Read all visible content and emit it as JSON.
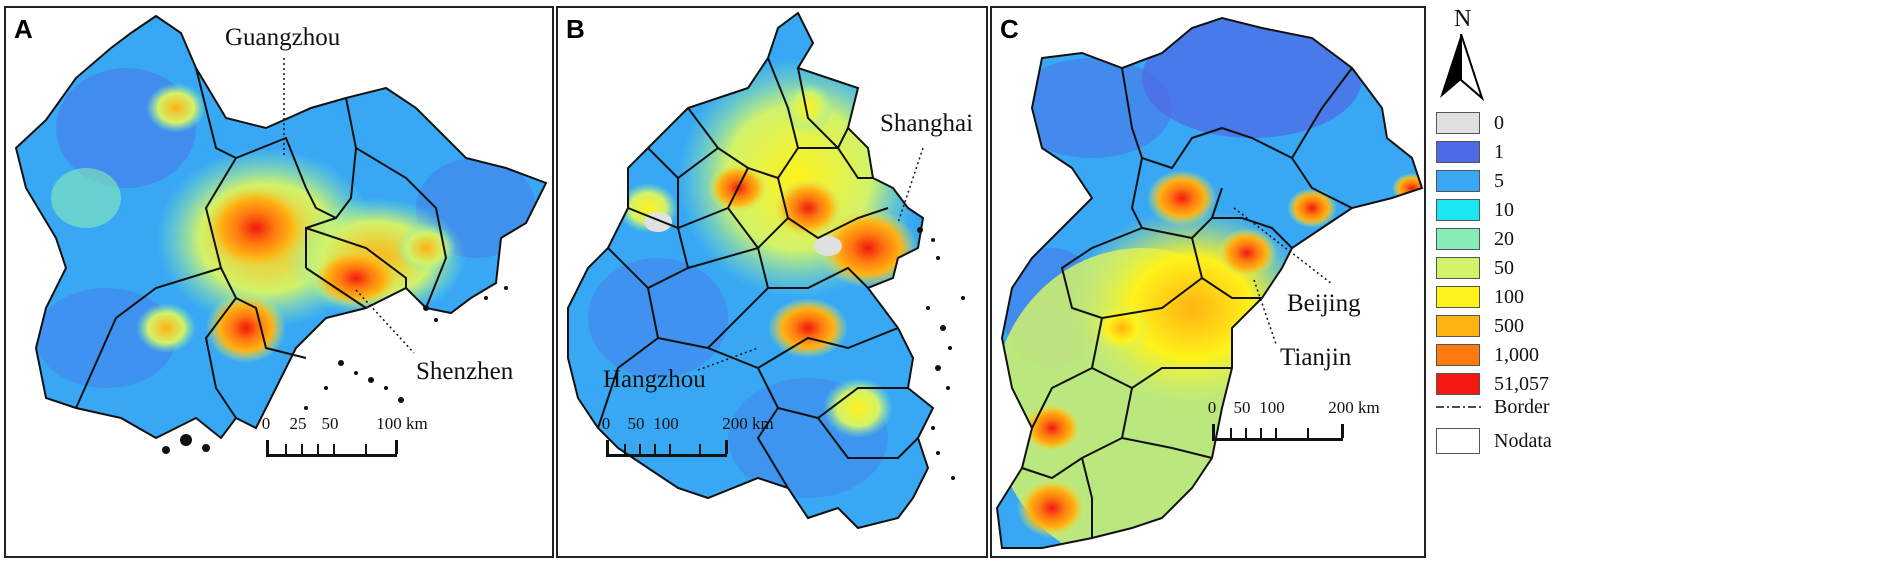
{
  "panels": [
    {
      "letter": "A",
      "cities": [
        "Guangzhou",
        "Shenzhen"
      ],
      "scale": {
        "ticks": [
          "0",
          "25",
          "50",
          "100 km"
        ]
      }
    },
    {
      "letter": "B",
      "cities": [
        "Shanghai",
        "Hangzhou"
      ],
      "scale": {
        "ticks": [
          "0",
          "50",
          "100",
          "200 km"
        ]
      }
    },
    {
      "letter": "C",
      "cities": [
        "Beijing",
        "Tianjin"
      ],
      "scale": {
        "ticks": [
          "0",
          "50",
          "100",
          "200 km"
        ]
      }
    }
  ],
  "north_arrow": {
    "label": "N",
    "icon": "north-arrow-icon"
  },
  "legend": {
    "classes": [
      {
        "label": "0",
        "color": "#e0e0e0"
      },
      {
        "label": "1",
        "color": "#4d6be6"
      },
      {
        "label": "5",
        "color": "#38a8f4"
      },
      {
        "label": "10",
        "color": "#19e6f2"
      },
      {
        "label": "20",
        "color": "#86ecb8"
      },
      {
        "label": "50",
        "color": "#d2f26a"
      },
      {
        "label": "100",
        "color": "#fff21a"
      },
      {
        "label": "500",
        "color": "#ffb312"
      },
      {
        "label": "1,000",
        "color": "#ff7a10"
      },
      {
        "label": "51,057",
        "color": "#f21a10"
      }
    ],
    "border_label": "Border",
    "nodata_label": "Nodata"
  }
}
